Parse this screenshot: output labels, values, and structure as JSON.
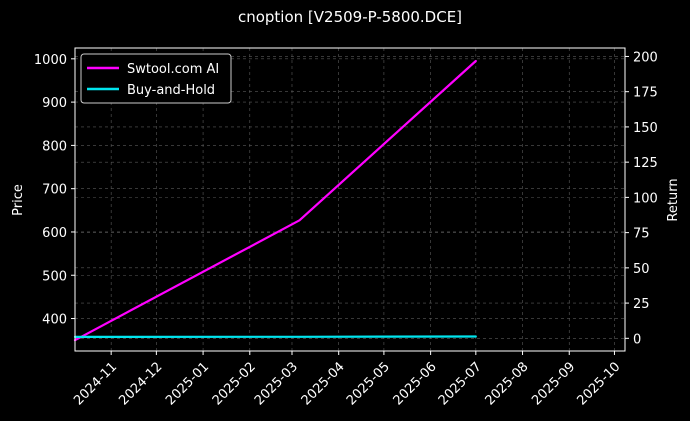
{
  "chart_data": {
    "type": "line",
    "title": "cnoption [V2509-P-5800.DCE]",
    "xlabel": "",
    "ylabel": "Price",
    "y2label": "Return",
    "x_ticks": [
      "2024-11",
      "2024-12",
      "2025-01",
      "2025-02",
      "2025-03",
      "2025-04",
      "2025-05",
      "2025-06",
      "2025-07",
      "2025-08",
      "2025-09",
      "2025-10"
    ],
    "xlim": [
      "2024-10-08",
      "2025-10-08"
    ],
    "ylim": [
      325,
      1025
    ],
    "y_ticks": [
      400,
      500,
      600,
      700,
      800,
      900,
      1000
    ],
    "y2lim": [
      -9,
      206
    ],
    "y2_ticks": [
      0,
      25,
      50,
      75,
      100,
      125,
      150,
      175,
      200
    ],
    "grid": true,
    "legend_position": "top-left",
    "series": [
      {
        "name": "Swtool.com AI",
        "axis": "left",
        "color": "#ff00ff",
        "x": [
          "2024-10-08",
          "2025-03-06",
          "2025-07-01"
        ],
        "y": [
          350,
          627,
          995
        ]
      },
      {
        "name": "Buy-and-Hold",
        "axis": "right",
        "color": "#00e5ee",
        "x": [
          "2024-10-08",
          "2025-03-06",
          "2025-07-01"
        ],
        "y": [
          1.0,
          1.1,
          1.3
        ]
      }
    ]
  }
}
